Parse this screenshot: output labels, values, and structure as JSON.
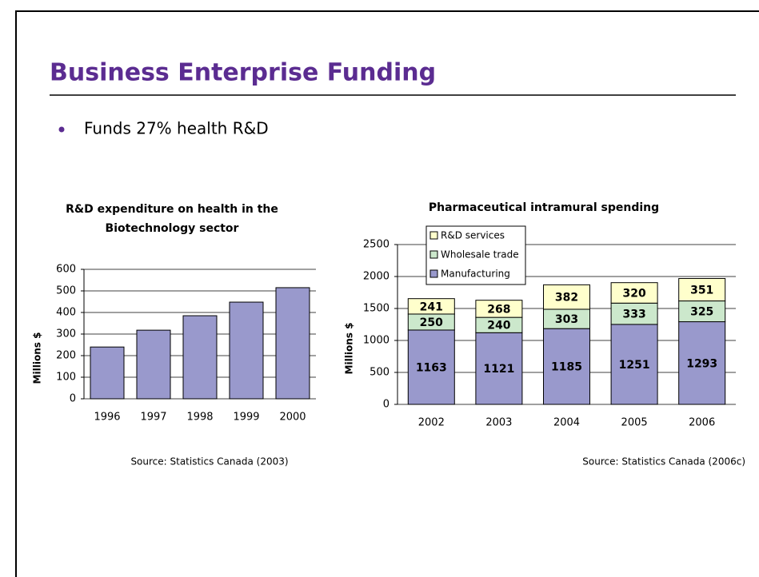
{
  "header": {
    "title": "Business Enterprise Funding"
  },
  "bullets": [
    "Funds 27% health R&D"
  ],
  "chart_data": [
    {
      "type": "bar",
      "title": "R&D expenditure on health in the Biotechnology sector",
      "ylabel": "Millions $",
      "categories": [
        "1996",
        "1997",
        "1998",
        "1999",
        "2000"
      ],
      "values": [
        240,
        318,
        385,
        448,
        515
      ],
      "color": "#9999cc",
      "ylim": [
        0,
        600
      ],
      "yticks": [
        0,
        100,
        200,
        300,
        400,
        500,
        600
      ],
      "grid": true,
      "source": "Source: Statistics Canada (2003)"
    },
    {
      "type": "stacked_bar",
      "title": "Pharmaceutical intramural spending",
      "ylabel": "Millions $",
      "categories": [
        "2002",
        "2003",
        "2004",
        "2005",
        "2006"
      ],
      "series": [
        {
          "name": "Manufacturing",
          "color": "#9999cc",
          "values": [
            1163,
            1121,
            1185,
            1251,
            1293
          ]
        },
        {
          "name": "Wholesale trade",
          "color": "#cce8cc",
          "values": [
            250,
            240,
            303,
            333,
            325
          ]
        },
        {
          "name": "R&D services",
          "color": "#ffffcc",
          "values": [
            241,
            268,
            382,
            320,
            351
          ]
        }
      ],
      "ylim": [
        0,
        2500
      ],
      "yticks": [
        0,
        500,
        1000,
        1500,
        2000,
        2500
      ],
      "grid": true,
      "legend": "upper left",
      "data_labels": true,
      "source": "Source: Statistics Canada (2006c)"
    }
  ]
}
